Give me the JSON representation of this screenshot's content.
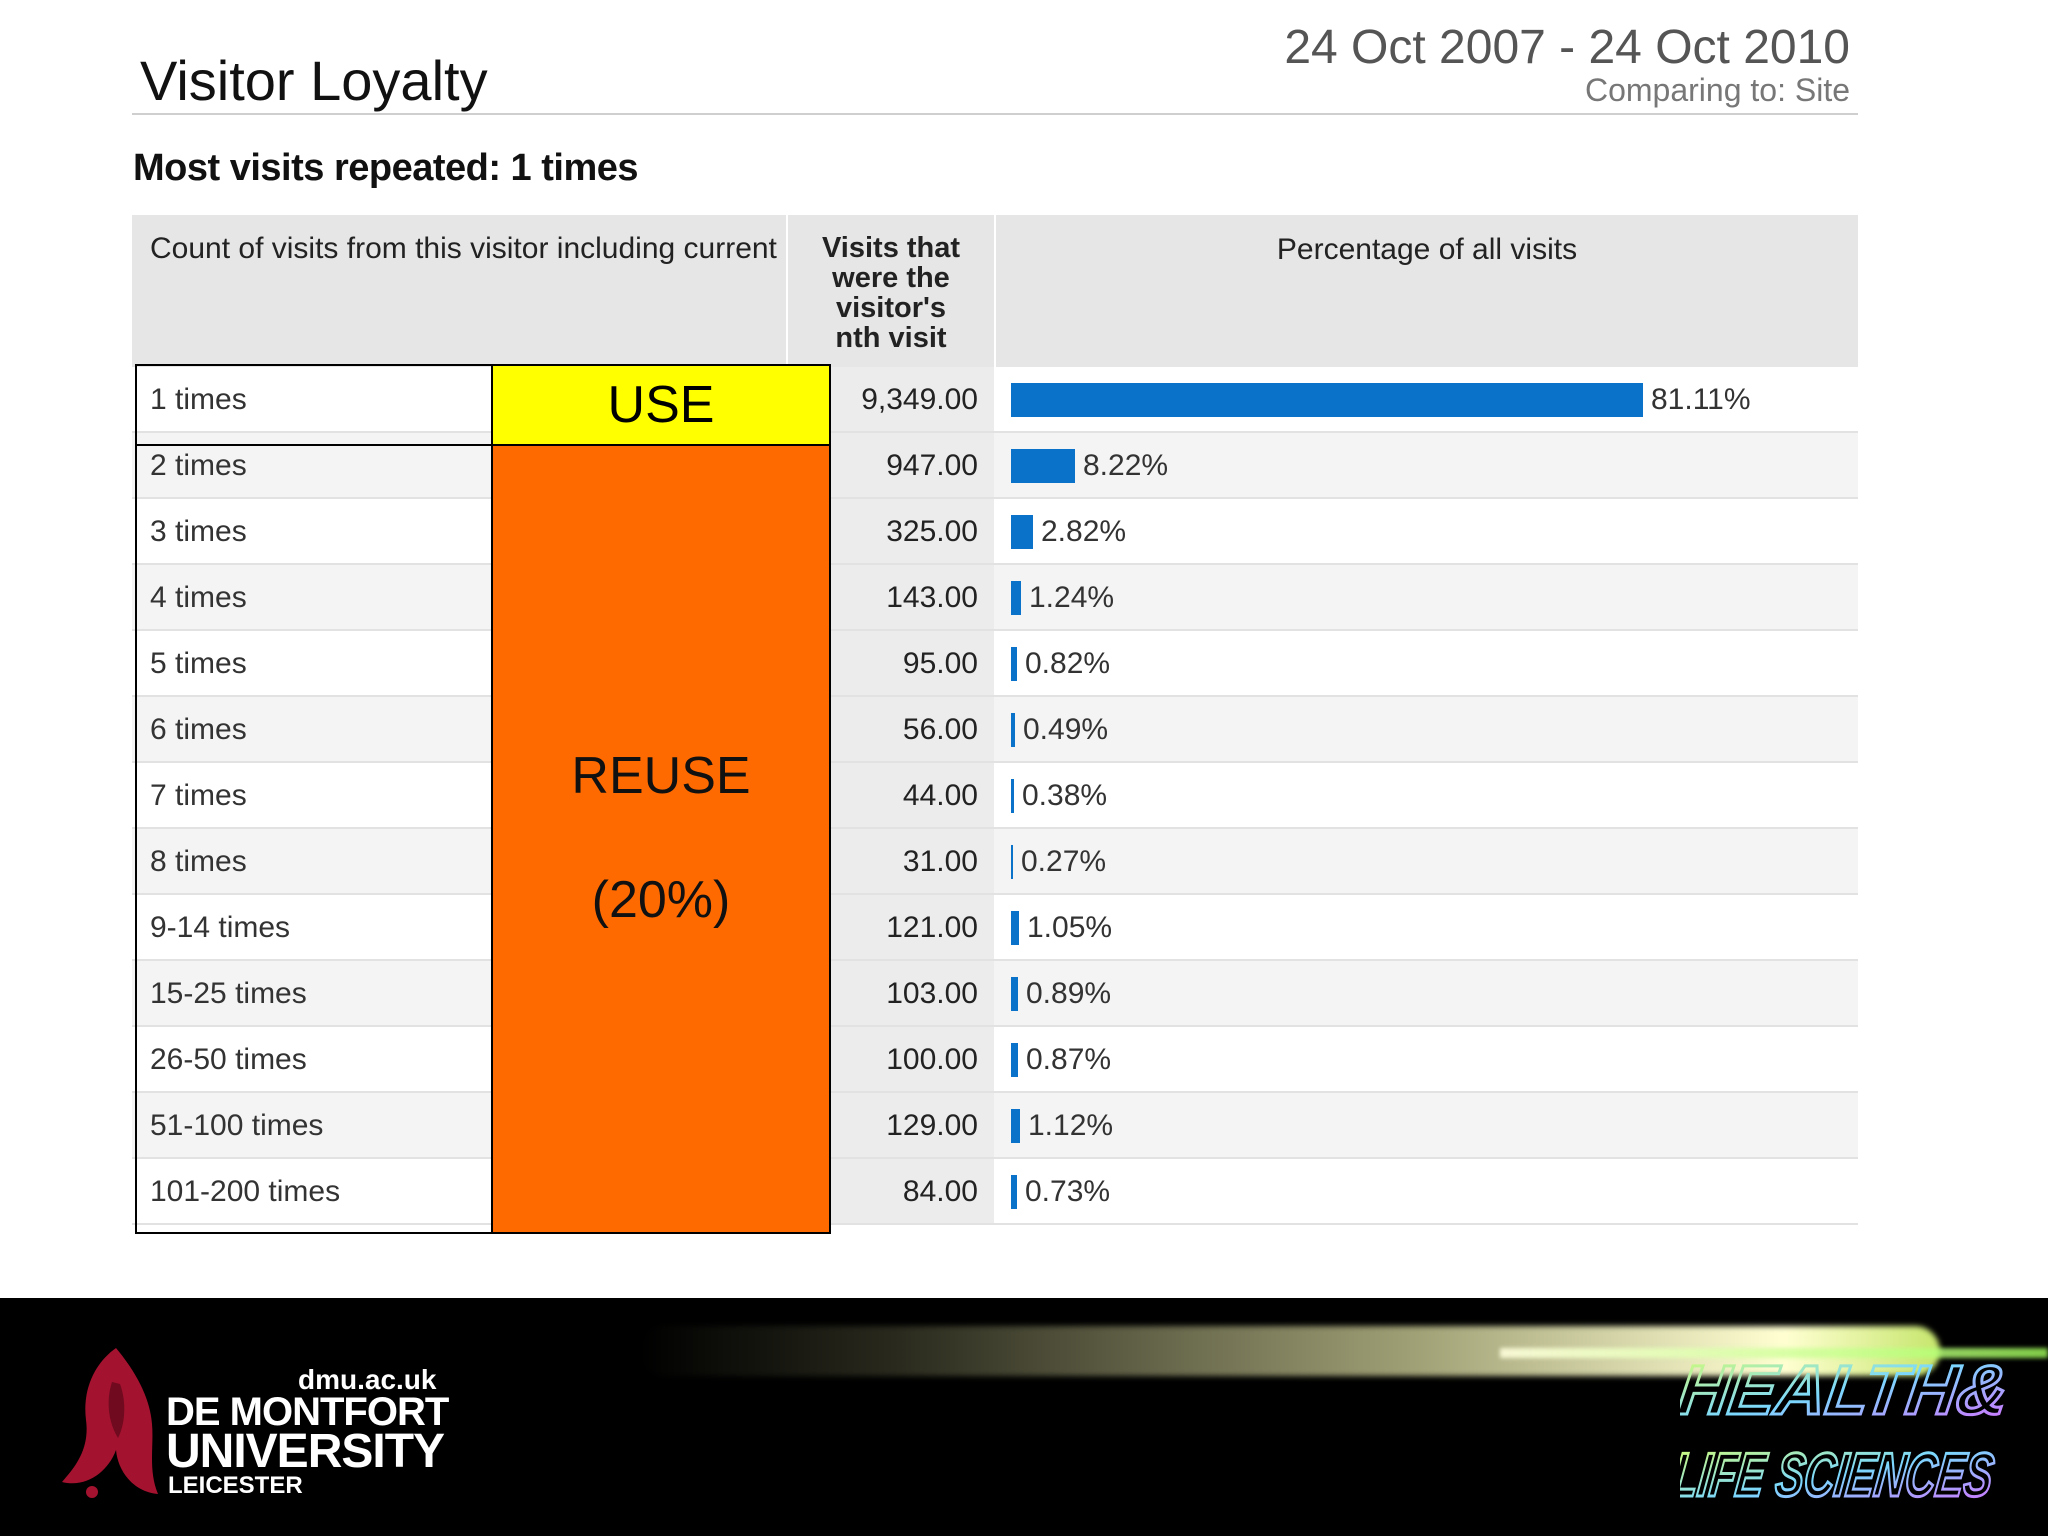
{
  "header": {
    "title": "Visitor Loyalty",
    "date_range": "24 Oct 2007 - 24 Oct 2010",
    "comparing": "Comparing to: Site",
    "subtitle": "Most visits repeated: 1 times"
  },
  "table": {
    "col_count": "Count of visits from this visitor including current",
    "col_visits": "Visits that were the visitor's nth visit",
    "col_pct": "Percentage of all visits",
    "rows": [
      {
        "count": "1 times",
        "visits": "9,349.00",
        "pct": "81.11%",
        "value": 81.11
      },
      {
        "count": "2 times",
        "visits": "947.00",
        "pct": "8.22%",
        "value": 8.22
      },
      {
        "count": "3 times",
        "visits": "325.00",
        "pct": "2.82%",
        "value": 2.82
      },
      {
        "count": "4 times",
        "visits": "143.00",
        "pct": "1.24%",
        "value": 1.24
      },
      {
        "count": "5 times",
        "visits": "95.00",
        "pct": "0.82%",
        "value": 0.82
      },
      {
        "count": "6 times",
        "visits": "56.00",
        "pct": "0.49%",
        "value": 0.49
      },
      {
        "count": "7 times",
        "visits": "44.00",
        "pct": "0.38%",
        "value": 0.38
      },
      {
        "count": "8 times",
        "visits": "31.00",
        "pct": "0.27%",
        "value": 0.27
      },
      {
        "count": "9-14 times",
        "visits": "121.00",
        "pct": "1.05%",
        "value": 1.05
      },
      {
        "count": "15-25 times",
        "visits": "103.00",
        "pct": "0.89%",
        "value": 0.89
      },
      {
        "count": "26-50 times",
        "visits": "100.00",
        "pct": "0.87%",
        "value": 0.87
      },
      {
        "count": "51-100 times",
        "visits": "129.00",
        "pct": "1.12%",
        "value": 1.12
      },
      {
        "count": "101-200 times",
        "visits": "84.00",
        "pct": "0.73%",
        "value": 0.73
      }
    ]
  },
  "annotations": {
    "use": "USE",
    "reuse": "REUSE",
    "reuse_pct": "(20%)"
  },
  "footer": {
    "url": "dmu.ac.uk",
    "name_line1": "DE MONTFORT",
    "name_line2": "UNIVERSITY",
    "city": "LEICESTER",
    "hls_line1": "HEALTH&",
    "hls_line2": "LIFE SCIENCES"
  },
  "colors": {
    "bar": "#0a72c8",
    "use_highlight": "#ffff00",
    "reuse_highlight": "#ff6a00",
    "header_bg": "#e6e6e6"
  }
}
